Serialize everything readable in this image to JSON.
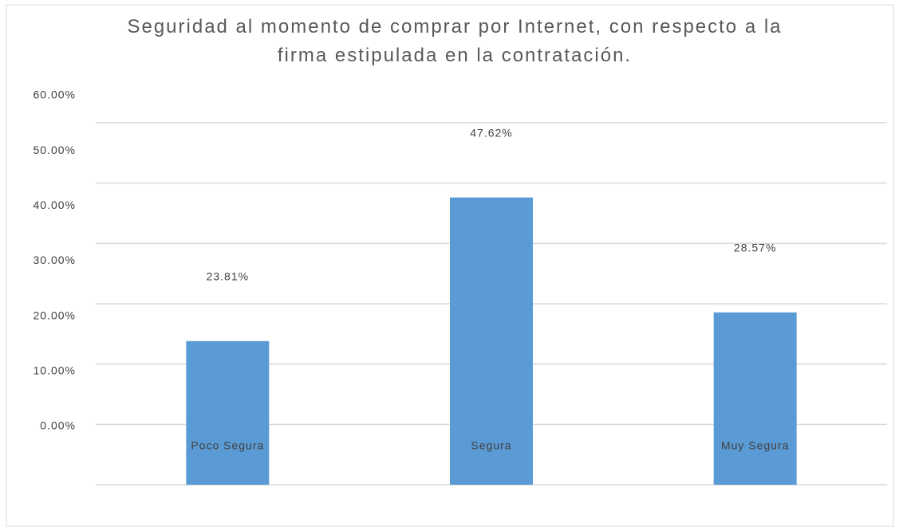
{
  "chart_data": {
    "type": "bar",
    "title": "Seguridad al momento de comprar por Internet, con respecto a la firma estipulada en la contratación.",
    "categories": [
      "Poco Segura",
      "Segura",
      "Muy Segura"
    ],
    "values": [
      23.81,
      47.62,
      28.57
    ],
    "value_labels": [
      "23.81%",
      "47.62%",
      "28.57%"
    ],
    "color": "#5b9bd5",
    "ylim": [
      0,
      60
    ],
    "yticks": [
      {
        "value": 0,
        "label": "0.00%"
      },
      {
        "value": 10,
        "label": "10.00%"
      },
      {
        "value": 20,
        "label": "20.00%"
      },
      {
        "value": 30,
        "label": "30.00%"
      },
      {
        "value": 40,
        "label": "40.00%"
      },
      {
        "value": 50,
        "label": "50.00%"
      },
      {
        "value": 60,
        "label": "60.00%"
      }
    ],
    "grid": true
  }
}
